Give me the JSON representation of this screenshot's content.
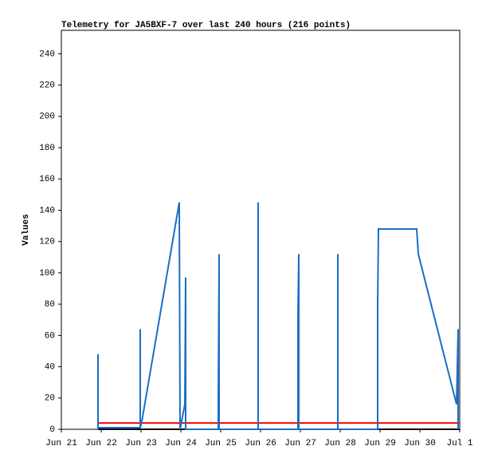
{
  "chart_data": {
    "type": "line",
    "title": "Telemetry for JA5BXF-7 over last 240 hours (216 points)",
    "y_label": "Values",
    "xlim": [
      0,
      10
    ],
    "ylim": [
      0,
      255
    ],
    "xticks": [
      {
        "value": 0,
        "label": "Jun 21"
      },
      {
        "value": 1,
        "label": "Jun 22"
      },
      {
        "value": 2,
        "label": "Jun 23"
      },
      {
        "value": 3,
        "label": "Jun 24"
      },
      {
        "value": 4,
        "label": "Jun 25"
      },
      {
        "value": 5,
        "label": "Jun 26"
      },
      {
        "value": 6,
        "label": "Jun 27"
      },
      {
        "value": 7,
        "label": "Jun 28"
      },
      {
        "value": 8,
        "label": "Jun 29"
      },
      {
        "value": 9,
        "label": "Jun 30"
      },
      {
        "value": 10,
        "label": "Jul 1"
      }
    ],
    "yticks": [
      0,
      20,
      40,
      60,
      80,
      100,
      120,
      140,
      160,
      180,
      200,
      220,
      240
    ],
    "series": [
      {
        "color": "#000000",
        "x": [
          0.92,
          10
        ],
        "values": [
          0,
          0
        ]
      },
      {
        "color": "#ff0000",
        "x": [
          0.92,
          10
        ],
        "values": [
          4,
          4
        ]
      },
      {
        "color": "#1a6fc4",
        "x": [
          0.92,
          0.92,
          0.92,
          1.98,
          1.98,
          1.98,
          2.02,
          2.96,
          2.98,
          3.1,
          3.12,
          3.12,
          3.94,
          3.94,
          3.96,
          3.96,
          4.94,
          4.94,
          4.94,
          5.94,
          5.94,
          5.96,
          5.96,
          6.94,
          6.94,
          6.94,
          7.94,
          7.94,
          7.96,
          8.92,
          8.96,
          9.92,
          9.96,
          9.96
        ],
        "values": [
          0,
          48,
          1,
          1,
          64,
          1,
          5,
          145,
          0,
          16,
          97,
          0,
          0,
          16,
          112,
          0,
          0,
          145,
          0,
          0,
          72,
          112,
          0,
          0,
          112,
          0,
          0,
          80,
          128,
          128,
          112,
          16,
          64,
          0
        ]
      }
    ]
  }
}
